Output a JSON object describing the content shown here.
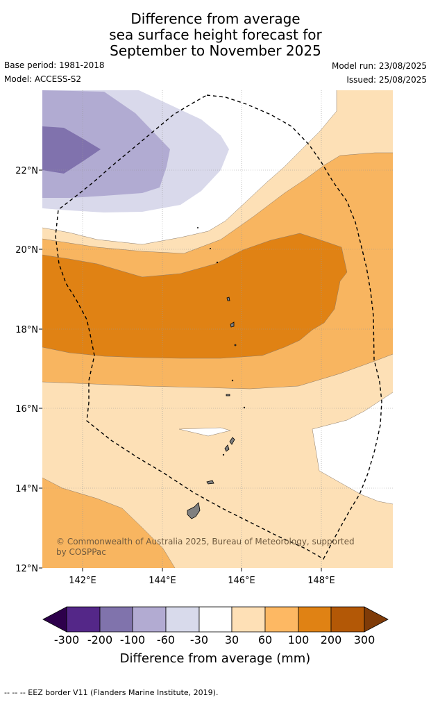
{
  "title": {
    "line1": "Difference from average",
    "line2": "sea surface height forecast for",
    "line3": "September to November 2025"
  },
  "meta": {
    "base_period": "Base period: 1981-2018",
    "model": "Model: ACCESS-S2",
    "model_run": "Model run: 23/08/2025",
    "issued": "Issued: 25/08/2025"
  },
  "map": {
    "lat_labels": [
      "22°N",
      "20°N",
      "18°N",
      "16°N",
      "14°N",
      "12°N"
    ],
    "lon_labels": [
      "142°E",
      "144°E",
      "146°E",
      "148°E"
    ],
    "copyright_line1": "© Commonwealth of Australia 2025, Bureau of Meteorology, supported",
    "copyright_line2": "by COSPPac",
    "colors": {
      "c_m200": "#5a2a8a",
      "c_m100": "#8072ad",
      "c_m60": "#b1abd2",
      "c_m30": "#d9d9eb",
      "c_0": "#ffffff",
      "c_30": "#fde0b6",
      "c_60": "#f8b560",
      "c_100": "#e08214",
      "c_200": "#b35806",
      "land": "#808080"
    }
  },
  "colorbar": {
    "ticks": [
      "-300",
      "-200",
      "-100",
      "-60",
      "-30",
      "30",
      "60",
      "100",
      "200",
      "300"
    ],
    "label": "Difference from average (mm)",
    "colors": [
      "#2d004b",
      "#542788",
      "#8073ac",
      "#b2abd2",
      "#d8daeb",
      "#ffffff",
      "#fee0b6",
      "#fdb863",
      "#e08214",
      "#b35806",
      "#7f3b08"
    ]
  },
  "footnote": "--  --  -- EEZ border V11 (Flanders Marine Institute, 2019)."
}
